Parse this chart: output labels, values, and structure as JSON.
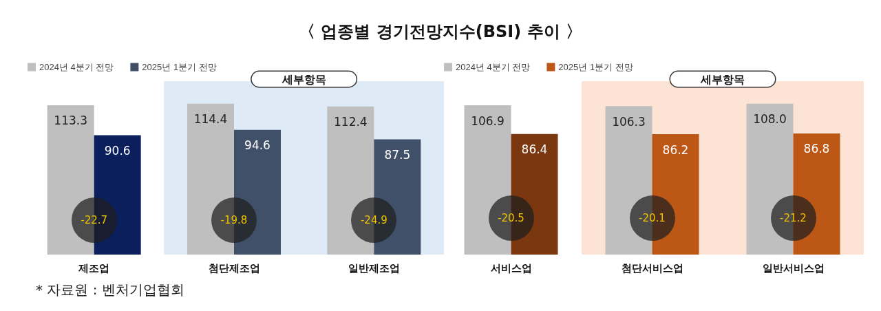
{
  "chart_data": [
    {
      "type": "bar",
      "title": "〈 업종별 경기전망지수(BSI) 추이 〉",
      "categories": [
        "제조업",
        "첨단제조업",
        "일반제조업"
      ],
      "series": [
        {
          "name": "2024년 4분기 전망",
          "color": "#bfbfbf",
          "values": [
            113.3,
            114.4,
            112.4
          ],
          "value_labels": [
            "113.3",
            "114.4",
            "112.4"
          ]
        },
        {
          "name": "2025년 1분기 전망",
          "color": "#415069",
          "colors": [
            "#0a1f5c",
            "#415069",
            "#415069"
          ],
          "values": [
            90.6,
            94.6,
            87.5
          ],
          "value_labels": [
            "90.6",
            "94.6",
            "87.5"
          ]
        }
      ],
      "legend": "top left",
      "grid": false,
      "tick_labels": "x",
      "bands": [
        {
          "axis": "x",
          "from": "첨단제조업",
          "to": "일반제조업",
          "label": "세부항목",
          "color": "#deebf6"
        }
      ],
      "annotations": [
        {
          "text": "-22.7",
          "x": "제조업",
          "y": 26
        },
        {
          "text": "-19.8",
          "x": "첨단제조업",
          "y": 26
        },
        {
          "text": "-24.9",
          "x": "일반제조업",
          "y": 26
        },
        "* 자료원 : 벤처기업협회"
      ]
    },
    {
      "type": "bar",
      "categories": [
        "서비스업",
        "첨단서비스업",
        "일반서비스업"
      ],
      "series": [
        {
          "name": "2024년 4분기 전망",
          "color": "#bfbfbf",
          "values": [
            106.9,
            106.3,
            108.0
          ],
          "value_labels": [
            "106.9",
            "106.3",
            "108.0"
          ]
        },
        {
          "name": "2025년 1분기 전망",
          "color": "#bd5716",
          "colors": [
            "#7b3810",
            "#bd5716",
            "#bd5716"
          ],
          "values": [
            86.4,
            86.2,
            86.8
          ],
          "value_labels": [
            "86.4",
            "86.2",
            "86.8"
          ]
        }
      ],
      "legend": "top left",
      "grid": false,
      "tick_labels": "x",
      "bands": [
        {
          "axis": "x",
          "from": "첨단서비스업",
          "to": "일반서비스업",
          "label": "세부항목",
          "color": "#fce3d3"
        }
      ],
      "annotations": [
        {
          "text": "-20.5",
          "x": "서비스업",
          "y": 26
        },
        {
          "text": "-20.1",
          "x": "첨단서비스업",
          "y": 26
        },
        {
          "text": "-21.2",
          "x": "일반서비스업",
          "y": 26
        }
      ]
    }
  ]
}
